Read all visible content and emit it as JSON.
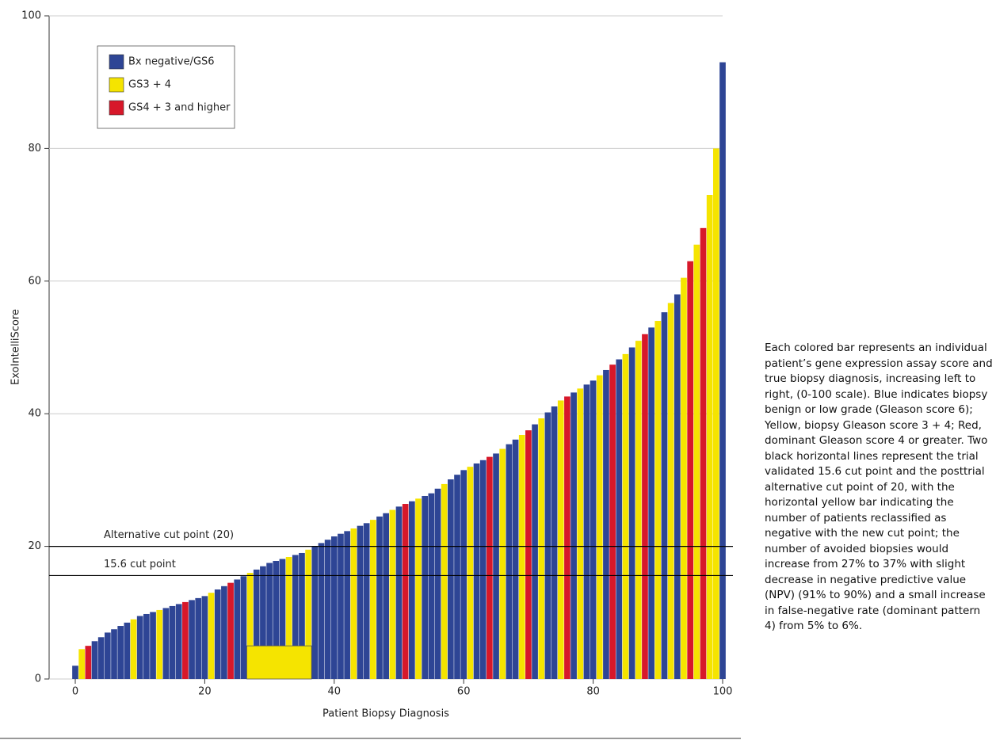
{
  "chart_data": {
    "type": "bar",
    "x_label": "Patient Biopsy Diagnosis",
    "y_label": "ExoIntelliScore",
    "xlim": [
      0,
      100
    ],
    "xticks": [
      0,
      20,
      40,
      60,
      80,
      100
    ],
    "ylim": [
      0,
      100
    ],
    "yticks": [
      0,
      20,
      40,
      60,
      80,
      100
    ],
    "grid": true,
    "legend": "upper left",
    "series": [
      {
        "name": "Bx negative/GS6",
        "color": "#2e4595",
        "x": [
          0,
          3,
          4,
          5,
          6,
          7,
          8,
          10,
          11,
          12,
          14,
          15,
          16,
          18,
          19,
          20,
          22,
          23,
          25,
          26,
          28,
          29,
          30,
          31,
          32,
          34,
          35,
          37,
          38,
          39,
          40,
          41,
          42,
          44,
          45,
          47,
          48,
          50,
          52,
          54,
          55,
          56,
          58,
          59,
          60,
          62,
          63,
          65,
          67,
          68,
          71,
          73,
          74,
          77,
          79,
          80,
          82,
          84,
          86,
          89,
          91,
          93,
          100
        ],
        "values": [
          2,
          5.7,
          6.3,
          7,
          7.5,
          8,
          8.5,
          9.5,
          9.8,
          10.1,
          10.7,
          11,
          11.3,
          11.9,
          12.2,
          12.5,
          13.5,
          14,
          15,
          15.5,
          16.5,
          17,
          17.5,
          17.8,
          18.1,
          18.7,
          19,
          20,
          20.5,
          21,
          21.5,
          21.9,
          22.3,
          23.1,
          23.5,
          24.5,
          25,
          26,
          26.8,
          27.6,
          28,
          28.7,
          30.1,
          30.8,
          31.5,
          32.5,
          33,
          34,
          35.4,
          36.1,
          38.4,
          40.2,
          41.1,
          43.2,
          44.4,
          45,
          46.6,
          48.2,
          50,
          53,
          55.3,
          58,
          93
        ]
      },
      {
        "name": "GS3 + 4",
        "color": "#f5e400",
        "x": [
          1,
          9,
          13,
          21,
          27,
          33,
          36,
          43,
          46,
          49,
          53,
          57,
          61,
          66,
          69,
          72,
          75,
          78,
          81,
          85,
          87,
          90,
          92,
          94,
          96,
          98,
          99
        ],
        "values": [
          4.5,
          9,
          10.4,
          13,
          16,
          18.4,
          19.5,
          22.7,
          24,
          25.5,
          27.2,
          29.4,
          32,
          34.7,
          36.8,
          39.3,
          42,
          43.8,
          45.8,
          49,
          51,
          54,
          56.7,
          60.5,
          65.5,
          73,
          80
        ]
      },
      {
        "name": "GS4 + 3 and higher",
        "color": "#d7182a",
        "x": [
          2,
          17,
          24,
          51,
          64,
          70,
          76,
          83,
          88,
          95,
          97
        ],
        "values": [
          5,
          11.6,
          14.5,
          26.4,
          33.5,
          37.5,
          42.6,
          47.4,
          52,
          63,
          68
        ]
      }
    ],
    "hlines": [
      {
        "value": 20,
        "label": "Alternative cut point (20)"
      },
      {
        "value": 15.6,
        "label": "15.6 cut point"
      }
    ],
    "highlight": {
      "x": [
        26.5,
        36.5
      ],
      "y": [
        0,
        5
      ],
      "color": "#f5e400"
    }
  },
  "caption": "Each colored bar represents an individual patient’s gene expression assay score and true biopsy diagnosis, increasing left to right, (0-100 scale). Blue indicates biopsy benign or low grade (Gleason score 6); Yellow, biopsy Gleason score 3 + 4; Red, dominant Gleason score 4 or greater. Two black horizontal lines represent the trial validated 15.6 cut point and the posttrial alternative cut point of 20, with the horizontal yellow bar indicating the number of patients reclassified as negative with the new cut point; the number of avoided biopsies would increase from 27% to 37% with slight decrease in negative predictive value (NPV) (91% to 90%) and a small increase in false-negative rate (dominant pattern 4) from 5% to 6%."
}
